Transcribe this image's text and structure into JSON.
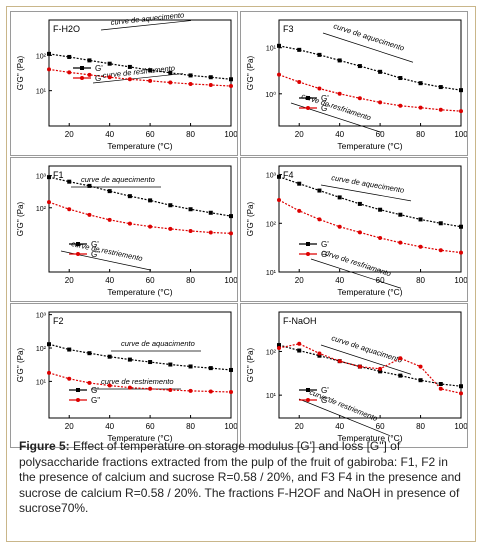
{
  "figure": {
    "caption_label": "Figure 5:",
    "caption_text": "Effect of temperature on storage modulus [G'] and loss [G\"] of polysaccharide fractions extracted from the pulp of the fruit of gabiroba: F1, F2 in the presence of calcium and sucrose R=0.58 / 20%, and F3 F4 in the presence and sucrose de calcium R=0.58 / 20%. The fractions F-H2OF and NaOH in presence of sucrose70%."
  },
  "chart_data": [
    {
      "type": "scatter",
      "label": "F-H2O",
      "xlabel": "Temperature (°C)",
      "ylabel": "G'G'' (Pa)",
      "xlim": [
        10,
        100
      ],
      "xticks": [
        20,
        40,
        60,
        80,
        100
      ],
      "yscale": "log",
      "ylim": [
        1,
        1000
      ],
      "yticks": [
        {
          "value": 10,
          "label": "10¹"
        },
        {
          "value": 100,
          "label": "10²"
        }
      ],
      "annotations": [
        "curve de aquecimento",
        "curve de resfriamento"
      ],
      "legend": "middle-left",
      "series": [
        {
          "name": "G'",
          "color": "#000000",
          "marker": "square",
          "x": [
            10,
            20,
            30,
            40,
            50,
            60,
            70,
            80,
            90,
            100
          ],
          "y": [
            110,
            90,
            72,
            58,
            47,
            38,
            32,
            27,
            24,
            21
          ]
        },
        {
          "name": "G''",
          "color": "#dd0000",
          "marker": "circle",
          "x": [
            10,
            20,
            30,
            40,
            50,
            60,
            70,
            80,
            90,
            100
          ],
          "y": [
            40,
            33,
            28,
            24,
            21,
            19,
            17,
            15.5,
            14.5,
            13.5
          ]
        }
      ]
    },
    {
      "type": "scatter",
      "label": "F3",
      "xlabel": "Temperature (°C)",
      "ylabel": "G'G'' (Pa)",
      "xlim": [
        10,
        100
      ],
      "xticks": [
        20,
        40,
        60,
        80,
        100
      ],
      "yscale": "log",
      "ylim": [
        0.2,
        40
      ],
      "yticks": [
        {
          "value": 10,
          "label": "10¹"
        },
        {
          "value": 1,
          "label": "10⁰"
        }
      ],
      "annotations": [
        "curve de aquecimento",
        "curve de resfriamento"
      ],
      "legend": "bottom-left",
      "series": [
        {
          "name": "G'",
          "color": "#000000",
          "marker": "square",
          "x": [
            10,
            20,
            30,
            40,
            50,
            60,
            70,
            80,
            90,
            100
          ],
          "y": [
            11,
            9,
            7,
            5.3,
            4,
            3,
            2.2,
            1.7,
            1.4,
            1.2
          ]
        },
        {
          "name": "G''",
          "color": "#dd0000",
          "marker": "circle",
          "x": [
            10,
            20,
            30,
            40,
            50,
            60,
            70,
            80,
            90,
            100
          ],
          "y": [
            2.6,
            1.8,
            1.3,
            1.0,
            0.8,
            0.65,
            0.55,
            0.5,
            0.45,
            0.42
          ]
        }
      ]
    },
    {
      "type": "scatter",
      "label": "F1",
      "xlabel": "Temperature (°C)",
      "ylabel": "G'G'' (Pa)",
      "xlim": [
        10,
        100
      ],
      "xticks": [
        20,
        40,
        60,
        80,
        100
      ],
      "yscale": "log",
      "ylim": [
        1,
        2000
      ],
      "yticks": [
        {
          "value": 1000,
          "label": "10³"
        },
        {
          "value": 100,
          "label": "10²"
        }
      ],
      "annotations": [
        "curve de aquecimento",
        "curve de restriemento"
      ],
      "legend": "bottom-left",
      "series": [
        {
          "name": "G'",
          "color": "#000000",
          "marker": "square",
          "x": [
            10,
            20,
            30,
            40,
            50,
            60,
            70,
            80,
            90,
            100
          ],
          "y": [
            900,
            650,
            480,
            330,
            230,
            170,
            120,
            90,
            70,
            55
          ]
        },
        {
          "name": "G''",
          "color": "#dd0000",
          "marker": "circle",
          "x": [
            10,
            20,
            30,
            40,
            50,
            60,
            70,
            80,
            90,
            100
          ],
          "y": [
            150,
            90,
            60,
            42,
            32,
            26,
            22,
            19,
            17,
            16
          ]
        }
      ]
    },
    {
      "type": "scatter",
      "label": "F4",
      "xlabel": "Temperature (°C)",
      "ylabel": "G'G'' (Pa)",
      "xlim": [
        10,
        100
      ],
      "xticks": [
        20,
        40,
        60,
        80,
        100
      ],
      "yscale": "log",
      "ylim": [
        10,
        1500
      ],
      "yticks": [
        {
          "value": 1000,
          "label": "10³"
        },
        {
          "value": 100,
          "label": "10²"
        },
        {
          "value": 10,
          "label": "10¹"
        }
      ],
      "annotations": [
        "curve de aquecimento",
        "curve de resfriamento"
      ],
      "legend": "bottom-left",
      "series": [
        {
          "name": "G'",
          "color": "#000000",
          "marker": "square",
          "x": [
            10,
            20,
            30,
            40,
            50,
            60,
            70,
            80,
            90,
            100
          ],
          "y": [
            900,
            650,
            470,
            340,
            250,
            190,
            150,
            120,
            100,
            85
          ]
        },
        {
          "name": "G''",
          "color": "#dd0000",
          "marker": "circle",
          "x": [
            10,
            20,
            30,
            40,
            50,
            60,
            70,
            80,
            90,
            100
          ],
          "y": [
            300,
            180,
            120,
            85,
            65,
            50,
            40,
            33,
            28,
            25
          ]
        }
      ]
    },
    {
      "type": "scatter",
      "label": "F2",
      "xlabel": "Temperature (°C)",
      "ylabel": "G'G'' (Pa)",
      "xlim": [
        10,
        100
      ],
      "xticks": [
        20,
        40,
        60,
        80,
        100
      ],
      "yscale": "log",
      "ylim": [
        0.8,
        1200
      ],
      "yticks": [
        {
          "value": 1000,
          "label": "10³"
        },
        {
          "value": 100,
          "label": "10²"
        },
        {
          "value": 10,
          "label": "10¹"
        }
      ],
      "annotations": [
        "curve de aquacimento",
        "curve de restriemento"
      ],
      "legend": "bottom-left",
      "series": [
        {
          "name": "G'",
          "color": "#000000",
          "marker": "square",
          "x": [
            10,
            20,
            30,
            40,
            50,
            60,
            70,
            80,
            90,
            100
          ],
          "y": [
            130,
            90,
            70,
            55,
            45,
            38,
            32,
            28,
            25,
            22
          ]
        },
        {
          "name": "G''",
          "color": "#dd0000",
          "marker": "circle",
          "x": [
            10,
            20,
            30,
            40,
            50,
            60,
            70,
            80,
            90,
            100
          ],
          "y": [
            18,
            12,
            9,
            7.5,
            6.5,
            6,
            5.5,
            5.2,
            5,
            4.8
          ]
        }
      ]
    },
    {
      "type": "scatter",
      "label": "F-NaOH",
      "xlabel": "Temperature (°C)",
      "ylabel": "G'G'' (Pa)",
      "xlim": [
        10,
        100
      ],
      "xticks": [
        20,
        40,
        60,
        80,
        100
      ],
      "yscale": "log",
      "ylim": [
        3,
        800
      ],
      "yticks": [
        {
          "value": 100,
          "label": "10²"
        },
        {
          "value": 10,
          "label": "10¹"
        }
      ],
      "annotations": [
        "curve de aquacimento",
        "curve de restriemento"
      ],
      "legend": "bottom-left",
      "series": [
        {
          "name": "G'",
          "color": "#000000",
          "marker": "square",
          "x": [
            10,
            20,
            30,
            40,
            50,
            60,
            70,
            80,
            90,
            100
          ],
          "y": [
            140,
            105,
            80,
            60,
            45,
            35,
            28,
            22,
            18,
            16
          ]
        },
        {
          "name": "G''",
          "color": "#dd0000",
          "marker": "circle",
          "x": [
            10,
            20,
            30,
            40,
            50,
            60,
            70,
            80,
            90,
            100
          ],
          "y": [
            120,
            150,
            90,
            60,
            45,
            40,
            70,
            45,
            14,
            11
          ]
        }
      ]
    }
  ]
}
